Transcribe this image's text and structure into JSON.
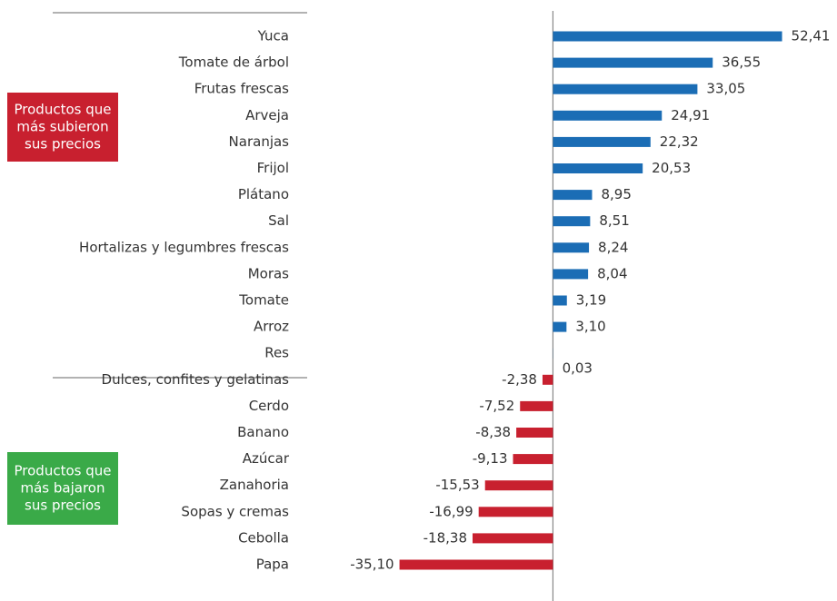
{
  "chart_data": {
    "type": "hbar",
    "categories": [
      "Yuca",
      "Tomate de árbol",
      "Frutas frescas",
      "Arveja",
      "Naranjas",
      "Frijol",
      "Plátano",
      "Sal",
      "Hortalizas y legumbres frescas",
      "Moras",
      "Tomate",
      "Arroz",
      "Res",
      "Dulces, confites y gelatinas",
      "Cerdo",
      "Banano",
      "Azúcar",
      "Zanahoria",
      "Sopas y cremas",
      "Cebolla",
      "Papa"
    ],
    "values": [
      52.41,
      36.55,
      33.05,
      24.91,
      22.32,
      20.53,
      8.95,
      8.51,
      8.24,
      8.04,
      3.19,
      3.1,
      0.03,
      -2.38,
      -7.52,
      -8.38,
      -9.13,
      -15.53,
      -16.99,
      -18.38,
      -35.1
    ],
    "value_labels": [
      "52,41",
      "36,55",
      "33,05",
      "24,91",
      "22,32",
      "20,53",
      "8,95",
      "8,51",
      "8,24",
      "8,04",
      "3,19",
      "3,10",
      "0,03",
      "-2,38",
      "-7,52",
      "-8,38",
      "-9,13",
      "-15,53",
      "-16,99",
      "-18,38",
      "-35,10"
    ],
    "color": "#1b6db5",
    "negative_color": "#c8202f",
    "xlim": [
      -40,
      55
    ],
    "annotations": [
      {
        "text": [
          "Productos que",
          "más subieron",
          "sus precios"
        ],
        "color": "#c8202f"
      },
      {
        "text": [
          "Productos que",
          "más bajaron",
          "sus precios"
        ],
        "color": "#3aaa48"
      }
    ]
  }
}
